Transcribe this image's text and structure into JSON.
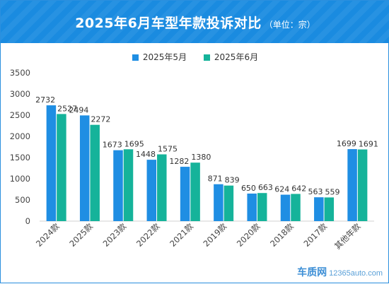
{
  "header": {
    "title": "2025年6月车型年款投诉对比",
    "unit": "（单位：宗）"
  },
  "watermark": {
    "brand": "车质网",
    "site": "12365auto.com"
  },
  "colors": {
    "header_bg": "#1a8be0",
    "series_may": "#1f8ee3",
    "series_june": "#15b39a"
  },
  "chart_data": {
    "type": "bar",
    "title": "2025年6月车型年款投诉对比",
    "subtitle": "（单位：宗）",
    "categories": [
      "2024款",
      "2025款",
      "2023款",
      "2022款",
      "2021款",
      "2019款",
      "2020款",
      "2018款",
      "2017款",
      "其他年款"
    ],
    "series": [
      {
        "name": "2025年5月",
        "color": "#1f8ee3",
        "values": [
          2732,
          2494,
          1673,
          1448,
          1282,
          871,
          650,
          624,
          563,
          1699
        ]
      },
      {
        "name": "2025年6月",
        "color": "#15b39a",
        "values": [
          2527,
          2272,
          1695,
          1575,
          1380,
          839,
          663,
          642,
          559,
          1691
        ]
      }
    ],
    "ylim": [
      0,
      3500
    ],
    "yticks": [
      0,
      500,
      1000,
      1500,
      2000,
      2500,
      3000,
      3500
    ],
    "legend": "top",
    "grid": false
  }
}
